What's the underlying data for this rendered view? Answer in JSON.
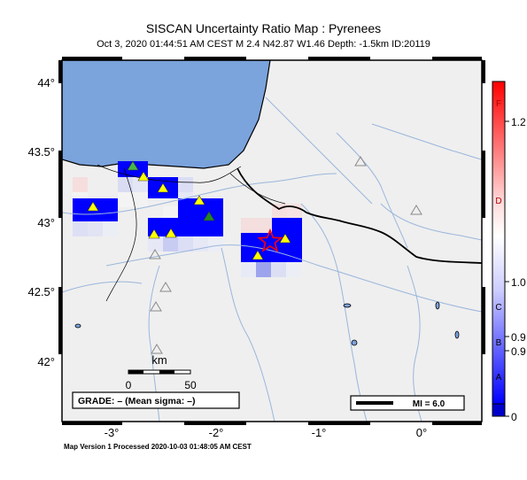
{
  "header": {
    "title": "SISCAN Uncertainty Ratio Map : Pyrenees",
    "subtitle": "Oct  3, 2020 01:44:51 AM CEST   M 2.4   N42.87 W1.46   Depth: -1.5km   ID:20119"
  },
  "map": {
    "lat_labels": [
      "44°",
      "43.5°",
      "43°",
      "42.5°",
      "42°"
    ],
    "lon_labels": [
      "-3°",
      "-2°",
      "-1°",
      "0°"
    ],
    "scale_bar": {
      "unit": "km",
      "start": "0",
      "end": "50"
    },
    "grade_text": "GRADE: – (Mean sigma: –)",
    "mi_text": "MI = 6.0",
    "event": {
      "lat": 42.87,
      "lon": -1.46,
      "magnitude": 2.4,
      "depth_km": -1.5
    }
  },
  "colorbar": {
    "grade_labels": [
      "F",
      "D",
      "C",
      "B",
      "A"
    ],
    "value_labels": [
      "1.2",
      "1.0",
      "0.9",
      "0.9",
      "0"
    ]
  },
  "colors": {
    "sea": "#7ba3dc",
    "land": "#efefef",
    "high": "#0000ff",
    "event_star": "#ff0000",
    "station_active": "#ffff00"
  },
  "footer": {
    "text": "Map Version 1 Processed 2020-10-03 01:48:05 AM CEST"
  }
}
